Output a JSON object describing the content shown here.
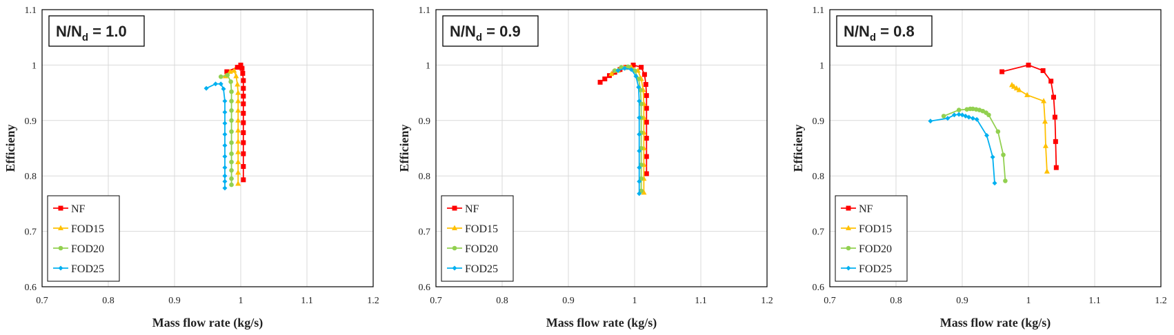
{
  "chart_data": [
    {
      "type": "line",
      "title_main": "N/N",
      "title_sub": "d",
      "title_value": " = 1.0",
      "xlabel": "Mass flow rate (kg/s)",
      "ylabel": "Efficieny",
      "xlim": [
        0.7,
        1.2
      ],
      "ylim": [
        0.6,
        1.1
      ],
      "xticks": [
        "0.7",
        "0.8",
        "0.9",
        "1",
        "1.1",
        "1.2"
      ],
      "yticks": [
        "0.6",
        "0.7",
        "0.8",
        "0.9",
        "1",
        "1.1"
      ],
      "grid": true,
      "legend_position": "bottom-left",
      "series": [
        {
          "name": "NF",
          "color": "#FF0000",
          "marker": "square",
          "x": [
            0.979,
            0.995,
            1.0,
            1.002,
            1.003,
            1.004,
            1.004,
            1.004,
            1.004,
            1.004,
            1.004,
            1.004,
            1.004,
            1.004,
            1.004,
            1.004
          ],
          "y": [
            0.988,
            0.996,
            1.0,
            0.994,
            0.985,
            0.972,
            0.958,
            0.944,
            0.93,
            0.913,
            0.896,
            0.878,
            0.86,
            0.84,
            0.817,
            0.793
          ]
        },
        {
          "name": "FOD15",
          "color": "#FFC000",
          "marker": "triangle",
          "x": [
            0.977,
            0.984,
            0.99,
            0.993,
            0.995,
            0.996,
            0.996,
            0.996,
            0.996,
            0.996,
            0.996,
            0.996,
            0.996,
            0.996,
            0.996
          ],
          "y": [
            0.98,
            0.988,
            0.99,
            0.98,
            0.965,
            0.95,
            0.935,
            0.918,
            0.9,
            0.882,
            0.862,
            0.843,
            0.825,
            0.806,
            0.786
          ]
        },
        {
          "name": "FOD20",
          "color": "#92D050",
          "marker": "circle",
          "x": [
            0.97,
            0.98,
            0.985,
            0.986,
            0.986,
            0.986,
            0.986,
            0.986,
            0.986,
            0.986,
            0.986,
            0.986,
            0.986,
            0.986
          ],
          "y": [
            0.979,
            0.982,
            0.97,
            0.952,
            0.935,
            0.918,
            0.9,
            0.88,
            0.86,
            0.84,
            0.825,
            0.81,
            0.795,
            0.784
          ]
        },
        {
          "name": "FOD25",
          "color": "#00B0F0",
          "marker": "diamond",
          "x": [
            0.948,
            0.962,
            0.97,
            0.974,
            0.976,
            0.976,
            0.976,
            0.976,
            0.976,
            0.976,
            0.976,
            0.976,
            0.976,
            0.976
          ],
          "y": [
            0.958,
            0.966,
            0.966,
            0.957,
            0.935,
            0.915,
            0.895,
            0.875,
            0.855,
            0.835,
            0.815,
            0.8,
            0.79,
            0.778
          ]
        }
      ]
    },
    {
      "type": "line",
      "title_main": "N/N",
      "title_sub": "d",
      "title_value": " = 0.9",
      "xlabel": "Mass flow rate (kg/s)",
      "ylabel": "Efficieny",
      "xlim": [
        0.7,
        1.2
      ],
      "ylim": [
        0.6,
        1.1
      ],
      "xticks": [
        "0.7",
        "0.8",
        "0.9",
        "1",
        "1.1",
        "1.2"
      ],
      "yticks": [
        "0.6",
        "0.7",
        "0.8",
        "0.9",
        "1",
        "1.1"
      ],
      "grid": true,
      "legend_position": "bottom-left",
      "series": [
        {
          "name": "NF",
          "color": "#FF0000",
          "marker": "square",
          "x": [
            0.948,
            0.955,
            0.962,
            0.97,
            0.978,
            0.987,
            0.998,
            1.01,
            1.015,
            1.017,
            1.018,
            1.018,
            1.018,
            1.018,
            1.018,
            1.018
          ],
          "y": [
            0.969,
            0.975,
            0.981,
            0.987,
            0.992,
            0.996,
            1.0,
            0.996,
            0.983,
            0.965,
            0.945,
            0.922,
            0.897,
            0.868,
            0.835,
            0.804
          ]
        },
        {
          "name": "FOD15",
          "color": "#FFC000",
          "marker": "triangle",
          "x": [
            0.965,
            0.975,
            0.985,
            0.995,
            1.005,
            1.01,
            1.013,
            1.014,
            1.014,
            1.014,
            1.014,
            1.014,
            1.014,
            1.014
          ],
          "y": [
            0.984,
            0.99,
            0.995,
            0.996,
            0.99,
            0.975,
            0.955,
            0.93,
            0.905,
            0.878,
            0.85,
            0.82,
            0.795,
            0.77
          ]
        },
        {
          "name": "FOD20",
          "color": "#92D050",
          "marker": "circle",
          "x": [
            0.97,
            0.98,
            0.99,
            1.0,
            1.006,
            1.009,
            1.01,
            1.01,
            1.01,
            1.01,
            1.01,
            1.01,
            1.01
          ],
          "y": [
            0.99,
            0.996,
            0.997,
            0.99,
            0.975,
            0.955,
            0.93,
            0.905,
            0.878,
            0.85,
            0.82,
            0.795,
            0.773
          ]
        },
        {
          "name": "FOD25",
          "color": "#00B0F0",
          "marker": "diamond",
          "x": [
            0.975,
            0.985,
            0.995,
            1.002,
            1.006,
            1.007,
            1.007,
            1.007,
            1.007,
            1.007,
            1.007,
            1.007
          ],
          "y": [
            0.99,
            0.994,
            0.992,
            0.98,
            0.96,
            0.935,
            0.905,
            0.875,
            0.845,
            0.815,
            0.79,
            0.768
          ]
        }
      ]
    },
    {
      "type": "line",
      "title_main": "N/N",
      "title_sub": "d",
      "title_value": " = 0.8",
      "xlabel": "Mass flow rate (kg/s)",
      "ylabel": "Efficieny",
      "xlim": [
        0.7,
        1.2
      ],
      "ylim": [
        0.6,
        1.1
      ],
      "xticks": [
        "0.7",
        "0.8",
        "0.9",
        "1",
        "1.1",
        "1.2"
      ],
      "yticks": [
        "0.6",
        "0.7",
        "0.8",
        "0.9",
        "1",
        "1.1"
      ],
      "grid": true,
      "legend_position": "bottom-left",
      "series": [
        {
          "name": "NF",
          "color": "#FF0000",
          "marker": "square",
          "x": [
            0.96,
            1.0,
            1.022,
            1.034,
            1.038,
            1.04,
            1.041,
            1.042
          ],
          "y": [
            0.988,
            1.0,
            0.99,
            0.971,
            0.942,
            0.906,
            0.862,
            0.815
          ]
        },
        {
          "name": "FOD15",
          "color": "#FFC000",
          "marker": "triangle",
          "x": [
            0.975,
            0.978,
            0.982,
            0.986,
            0.998,
            1.023,
            1.025,
            1.026,
            1.028
          ],
          "y": [
            0.964,
            0.961,
            0.958,
            0.955,
            0.946,
            0.935,
            0.898,
            0.854,
            0.808
          ]
        },
        {
          "name": "FOD20",
          "color": "#92D050",
          "marker": "circle",
          "x": [
            0.872,
            0.895,
            0.907,
            0.912,
            0.916,
            0.921,
            0.926,
            0.931,
            0.936,
            0.94,
            0.954,
            0.962,
            0.965
          ],
          "y": [
            0.908,
            0.919,
            0.92,
            0.921,
            0.921,
            0.92,
            0.919,
            0.917,
            0.914,
            0.91,
            0.88,
            0.838,
            0.791
          ]
        },
        {
          "name": "FOD25",
          "color": "#00B0F0",
          "marker": "diamond",
          "x": [
            0.852,
            0.878,
            0.888,
            0.895,
            0.9,
            0.905,
            0.91,
            0.916,
            0.922,
            0.937,
            0.946,
            0.949
          ],
          "y": [
            0.899,
            0.904,
            0.91,
            0.911,
            0.91,
            0.908,
            0.906,
            0.904,
            0.902,
            0.873,
            0.834,
            0.787
          ]
        }
      ]
    }
  ]
}
